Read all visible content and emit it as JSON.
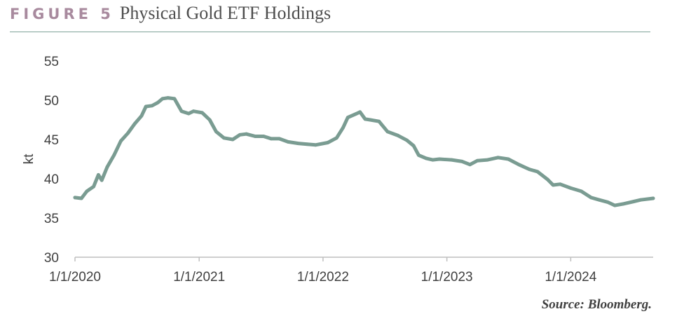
{
  "figure": {
    "label": "FIGURE 5",
    "title": "Physical Gold ETF Holdings",
    "source": "Source: Bloomberg."
  },
  "colors": {
    "figure_label": "#a88a9e",
    "line": "#7a9c92",
    "rule": "#7fa39a",
    "axis": "#bfbfbf",
    "text": "#404040"
  },
  "chart_data": {
    "type": "line",
    "title": "Physical Gold ETF Holdings",
    "xlabel": "",
    "ylabel": "kt",
    "ylim": [
      30,
      55
    ],
    "yticks": [
      30,
      35,
      40,
      45,
      50,
      55
    ],
    "xlim": [
      "2020-01-01",
      "2024-08-31"
    ],
    "xticks": [
      "2020-01-01",
      "2021-01-01",
      "2022-01-01",
      "2023-01-01",
      "2024-01-01"
    ],
    "xtick_labels": [
      "1/1/2020",
      "1/1/2021",
      "1/1/2022",
      "1/1/2023",
      "1/1/2024"
    ],
    "grid": false,
    "series": [
      {
        "points": [
          [
            "2020-01-01",
            37.6
          ],
          [
            "2020-01-20",
            37.5
          ],
          [
            "2020-02-05",
            38.4
          ],
          [
            "2020-02-25",
            39.0
          ],
          [
            "2020-03-10",
            40.5
          ],
          [
            "2020-03-20",
            39.8
          ],
          [
            "2020-04-05",
            41.5
          ],
          [
            "2020-04-25",
            43.0
          ],
          [
            "2020-05-15",
            44.8
          ],
          [
            "2020-06-05",
            45.8
          ],
          [
            "2020-06-25",
            47.0
          ],
          [
            "2020-07-15",
            48.0
          ],
          [
            "2020-07-28",
            49.2
          ],
          [
            "2020-08-15",
            49.3
          ],
          [
            "2020-09-01",
            49.7
          ],
          [
            "2020-09-15",
            50.2
          ],
          [
            "2020-10-01",
            50.3
          ],
          [
            "2020-10-20",
            50.2
          ],
          [
            "2020-11-10",
            48.6
          ],
          [
            "2020-12-01",
            48.3
          ],
          [
            "2020-12-15",
            48.6
          ],
          [
            "2021-01-10",
            48.4
          ],
          [
            "2021-02-01",
            47.5
          ],
          [
            "2021-02-20",
            46.0
          ],
          [
            "2021-03-15",
            45.2
          ],
          [
            "2021-04-10",
            45.0
          ],
          [
            "2021-05-01",
            45.6
          ],
          [
            "2021-05-20",
            45.7
          ],
          [
            "2021-06-15",
            45.4
          ],
          [
            "2021-07-10",
            45.4
          ],
          [
            "2021-08-01",
            45.1
          ],
          [
            "2021-08-25",
            45.1
          ],
          [
            "2021-09-20",
            44.7
          ],
          [
            "2021-10-20",
            44.5
          ],
          [
            "2021-11-15",
            44.4
          ],
          [
            "2021-12-10",
            44.3
          ],
          [
            "2022-01-15",
            44.6
          ],
          [
            "2022-02-10",
            45.2
          ],
          [
            "2022-03-01",
            46.5
          ],
          [
            "2022-03-15",
            47.8
          ],
          [
            "2022-04-05",
            48.2
          ],
          [
            "2022-04-20",
            48.5
          ],
          [
            "2022-05-05",
            47.6
          ],
          [
            "2022-05-20",
            47.5
          ],
          [
            "2022-06-15",
            47.3
          ],
          [
            "2022-07-10",
            46.0
          ],
          [
            "2022-08-10",
            45.5
          ],
          [
            "2022-09-05",
            44.9
          ],
          [
            "2022-09-25",
            44.2
          ],
          [
            "2022-10-10",
            43.0
          ],
          [
            "2022-11-01",
            42.6
          ],
          [
            "2022-11-20",
            42.4
          ],
          [
            "2022-12-10",
            42.5
          ],
          [
            "2023-01-15",
            42.4
          ],
          [
            "2023-02-15",
            42.2
          ],
          [
            "2023-03-10",
            41.8
          ],
          [
            "2023-04-01",
            42.3
          ],
          [
            "2023-05-01",
            42.4
          ],
          [
            "2023-06-01",
            42.7
          ],
          [
            "2023-07-01",
            42.5
          ],
          [
            "2023-08-01",
            41.8
          ],
          [
            "2023-09-01",
            41.2
          ],
          [
            "2023-09-25",
            40.9
          ],
          [
            "2023-10-25",
            39.9
          ],
          [
            "2023-11-10",
            39.2
          ],
          [
            "2023-12-01",
            39.3
          ],
          [
            "2024-01-01",
            38.8
          ],
          [
            "2024-02-01",
            38.4
          ],
          [
            "2024-03-01",
            37.6
          ],
          [
            "2024-03-25",
            37.3
          ],
          [
            "2024-04-20",
            37.0
          ],
          [
            "2024-05-10",
            36.6
          ],
          [
            "2024-06-05",
            36.8
          ],
          [
            "2024-07-05",
            37.1
          ],
          [
            "2024-07-25",
            37.3
          ],
          [
            "2024-08-31",
            37.5
          ]
        ]
      }
    ]
  }
}
